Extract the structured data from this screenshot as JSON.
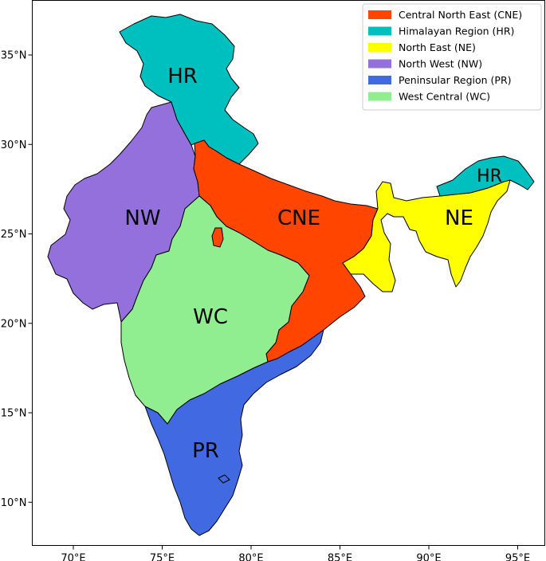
{
  "map": {
    "x_ticks": [
      {
        "lon": 70,
        "label": "70°E"
      },
      {
        "lon": 75,
        "label": "75°E"
      },
      {
        "lon": 80,
        "label": "80°E"
      },
      {
        "lon": 85,
        "label": "85°E"
      },
      {
        "lon": 90,
        "label": "90°E"
      },
      {
        "lon": 95,
        "label": "95°E"
      }
    ],
    "y_ticks": [
      {
        "lat": 35,
        "label": "35°N"
      },
      {
        "lat": 30,
        "label": "30°N"
      },
      {
        "lat": 25,
        "label": "25°N"
      },
      {
        "lat": 20,
        "label": "20°N"
      },
      {
        "lat": 15,
        "label": "15°N"
      },
      {
        "lat": 10,
        "label": "10°N"
      }
    ],
    "regions": [
      {
        "code": "CNE",
        "name": "Central North East (CNE)",
        "color": "#ff4500"
      },
      {
        "code": "HR",
        "name": "Himalayan Region (HR)",
        "color": "#00bfbf"
      },
      {
        "code": "NE",
        "name": "North East (NE)",
        "color": "#ffff00"
      },
      {
        "code": "NW",
        "name": "North West (NW)",
        "color": "#9370db"
      },
      {
        "code": "PR",
        "name": "Peninsular Region (PR)",
        "color": "#4169e1"
      },
      {
        "code": "WC",
        "name": "West Central (WC)",
        "color": "#90ee90"
      }
    ],
    "labels": {
      "HR_main": "HR",
      "HR_east": "HR",
      "NW": "NW",
      "CNE": "CNE",
      "NE": "NE",
      "WC": "WC",
      "PR": "PR"
    }
  }
}
